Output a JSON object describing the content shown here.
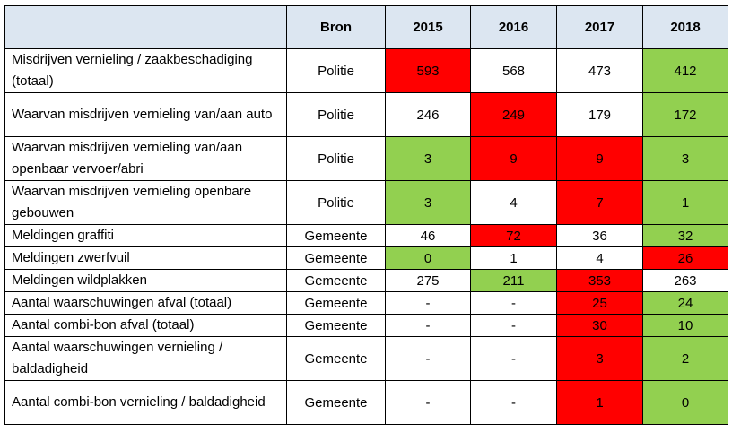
{
  "header": {
    "col0": "",
    "col1": "Bron",
    "years": [
      "2015",
      "2016",
      "2017",
      "2018"
    ]
  },
  "colors": {
    "red": "#ff0000",
    "green": "#92d050",
    "header": "#dce6f1"
  },
  "rows": [
    {
      "label": "Misdrijven vernieling / zaakbeschadiging (totaal)",
      "bron": "Politie",
      "values": [
        "593",
        "568",
        "473",
        "412"
      ],
      "colors": [
        "red",
        "white",
        "white",
        "green"
      ],
      "tall": true
    },
    {
      "label": "Waarvan misdrijven vernieling van/aan auto",
      "bron": "Politie",
      "values": [
        "246",
        "249",
        "179",
        "172"
      ],
      "colors": [
        "white",
        "red",
        "white",
        "green"
      ],
      "tall": true
    },
    {
      "label": "Waarvan misdrijven vernieling van/aan openbaar vervoer/abri",
      "bron": "Politie",
      "values": [
        "3",
        "9",
        "9",
        "3"
      ],
      "colors": [
        "green",
        "red",
        "red",
        "green"
      ],
      "tall": true
    },
    {
      "label": "Waarvan misdrijven vernieling openbare gebouwen",
      "bron": "Politie",
      "values": [
        "3",
        "4",
        "7",
        "1"
      ],
      "colors": [
        "green",
        "white",
        "red",
        "green"
      ],
      "tall": true
    },
    {
      "label": "Meldingen graffiti",
      "bron": "Gemeente",
      "values": [
        "46",
        "72",
        "36",
        "32"
      ],
      "colors": [
        "white",
        "red",
        "white",
        "green"
      ],
      "tall": false
    },
    {
      "label": "Meldingen zwerfvuil",
      "bron": "Gemeente",
      "values": [
        "0",
        "1",
        "4",
        "26"
      ],
      "colors": [
        "green",
        "white",
        "white",
        "red"
      ],
      "tall": false
    },
    {
      "label": "Meldingen wildplakken",
      "bron": "Gemeente",
      "values": [
        "275",
        "211",
        "353",
        "263"
      ],
      "colors": [
        "white",
        "green",
        "red",
        "white"
      ],
      "tall": false
    },
    {
      "label": "Aantal waarschuwingen afval (totaal)",
      "bron": "Gemeente",
      "values": [
        "-",
        "-",
        "25",
        "24"
      ],
      "colors": [
        "white",
        "white",
        "red",
        "green"
      ],
      "tall": false
    },
    {
      "label": "Aantal combi-bon afval (totaal)",
      "bron": "Gemeente",
      "values": [
        "-",
        "-",
        "30",
        "10"
      ],
      "colors": [
        "white",
        "white",
        "red",
        "green"
      ],
      "tall": false
    },
    {
      "label": "Aantal waarschuwingen vernieling / baldadigheid",
      "bron": "Gemeente",
      "values": [
        "-",
        "-",
        "3",
        "2"
      ],
      "colors": [
        "white",
        "white",
        "red",
        "green"
      ],
      "tall": true
    },
    {
      "label": "Aantal combi-bon vernieling / baldadigheid",
      "bron": "Gemeente",
      "values": [
        "-",
        "-",
        "1",
        "0"
      ],
      "colors": [
        "white",
        "white",
        "red",
        "green"
      ],
      "tall": true
    }
  ]
}
